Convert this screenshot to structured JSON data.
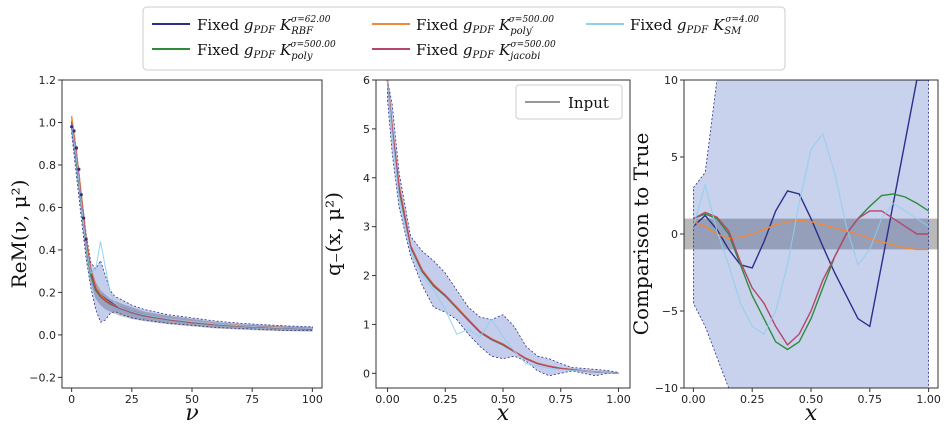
{
  "legend": {
    "entries": [
      {
        "key": "rbf",
        "label": "Fixed g_PDF K_RBF^{σ=62.00}",
        "color": "#2c2f8a"
      },
      {
        "key": "poly",
        "label": "Fixed g_PDF K_poly^{σ=500.00}",
        "color": "#2e8b3a"
      },
      {
        "key": "polyp",
        "label": "Fixed g_PDF K_poly'^{σ=500.00}",
        "color": "#f0883a"
      },
      {
        "key": "jacobi",
        "label": "Fixed g_PDF K_jacobi^{σ=500.00}",
        "color": "#b5476a"
      },
      {
        "key": "sm",
        "label": "Fixed g_PDF K_SM^{σ=4.00}",
        "color": "#8ecfee"
      }
    ]
  },
  "chart_data": [
    {
      "type": "line",
      "id": "rem",
      "ylabel": "ReM(ν, μ²)",
      "xlabel": "ν",
      "xlim": [
        -4,
        104
      ],
      "ylim": [
        -0.25,
        1.2
      ],
      "xticks": [
        0,
        25,
        50,
        75,
        100
      ],
      "xtick_labels": [
        "0",
        "25",
        "50",
        "75",
        "100"
      ],
      "yticks": [
        -0.2,
        0.0,
        0.2,
        0.4,
        0.6,
        0.8,
        1.0,
        1.2
      ],
      "ytick_labels": [
        "−0.2",
        "0.0",
        "0.2",
        "0.4",
        "0.6",
        "0.8",
        "1.0",
        "1.2"
      ],
      "x": [
        0,
        2,
        4,
        6,
        8,
        10,
        12,
        14,
        16,
        18,
        20,
        25,
        30,
        40,
        50,
        60,
        70,
        80,
        90,
        100
      ],
      "truth_band": {
        "lower": [
          0.97,
          0.78,
          0.58,
          0.38,
          0.24,
          0.17,
          0.14,
          0.12,
          0.11,
          0.1,
          0.09,
          0.075,
          0.065,
          0.05,
          0.04,
          0.03,
          0.025,
          0.02,
          0.018,
          0.015
        ],
        "upper": [
          1.01,
          0.86,
          0.66,
          0.46,
          0.32,
          0.25,
          0.21,
          0.19,
          0.17,
          0.16,
          0.15,
          0.13,
          0.11,
          0.09,
          0.075,
          0.06,
          0.05,
          0.045,
          0.04,
          0.035
        ]
      },
      "rbf_band": {
        "lower": [
          0.95,
          0.75,
          0.55,
          0.36,
          0.22,
          0.12,
          0.06,
          0.07,
          0.1,
          0.11,
          0.1,
          0.08,
          0.07,
          0.055,
          0.045,
          0.035,
          0.03,
          0.025,
          0.02,
          0.02
        ],
        "upper": [
          1.02,
          0.88,
          0.67,
          0.48,
          0.34,
          0.31,
          0.35,
          0.28,
          0.21,
          0.18,
          0.17,
          0.14,
          0.12,
          0.095,
          0.08,
          0.065,
          0.055,
          0.048,
          0.042,
          0.038
        ]
      },
      "data_points": {
        "x": [
          0,
          1,
          2,
          3,
          4,
          5,
          6
        ],
        "y": [
          0.98,
          0.96,
          0.88,
          0.78,
          0.66,
          0.55,
          0.45
        ]
      },
      "series": [
        {
          "key": "rbf",
          "values": [
            0.99,
            0.82,
            0.62,
            0.42,
            0.29,
            0.21,
            0.19,
            0.17,
            0.155,
            0.14,
            0.13,
            0.11,
            0.095,
            0.075,
            0.06,
            0.05,
            0.042,
            0.036,
            0.032,
            0.028
          ]
        },
        {
          "key": "poly",
          "values": [
            1.0,
            0.83,
            0.62,
            0.42,
            0.28,
            0.21,
            0.18,
            0.16,
            0.145,
            0.135,
            0.125,
            0.105,
            0.09,
            0.072,
            0.058,
            0.048,
            0.041,
            0.036,
            0.032,
            0.03
          ]
        },
        {
          "key": "polyp",
          "values": [
            1.03,
            0.86,
            0.66,
            0.46,
            0.31,
            0.23,
            0.19,
            0.165,
            0.15,
            0.138,
            0.128,
            0.108,
            0.093,
            0.075,
            0.062,
            0.052,
            0.044,
            0.038,
            0.034,
            0.031
          ]
        },
        {
          "key": "jacobi",
          "values": [
            1.0,
            0.84,
            0.64,
            0.44,
            0.3,
            0.22,
            0.185,
            0.16,
            0.148,
            0.136,
            0.126,
            0.106,
            0.091,
            0.073,
            0.059,
            0.049,
            0.042,
            0.037,
            0.033,
            0.03
          ]
        },
        {
          "key": "sm",
          "values": [
            0.99,
            0.83,
            0.62,
            0.42,
            0.29,
            0.31,
            0.44,
            0.32,
            0.2,
            0.15,
            0.13,
            0.11,
            0.095,
            0.076,
            0.062,
            0.051,
            0.043,
            0.037,
            0.033,
            0.03
          ]
        }
      ]
    },
    {
      "type": "line",
      "id": "qminus",
      "ylabel": "q₋(x, μ²)",
      "xlabel": "x",
      "xlim": [
        -0.05,
        1.05
      ],
      "ylim": [
        -0.3,
        6
      ],
      "xticks": [
        0,
        0.25,
        0.5,
        0.75,
        1.0
      ],
      "xtick_labels": [
        "0.00",
        "0.25",
        "0.50",
        "0.75",
        "1.00"
      ],
      "yticks": [
        0,
        1,
        2,
        3,
        4,
        5,
        6
      ],
      "ytick_labels": [
        "0",
        "1",
        "2",
        "3",
        "4",
        "5",
        "6"
      ],
      "legend": {
        "label": "Input",
        "color": "#777777"
      },
      "x": [
        0.0,
        0.02,
        0.05,
        0.1,
        0.15,
        0.2,
        0.25,
        0.3,
        0.35,
        0.4,
        0.45,
        0.5,
        0.55,
        0.6,
        0.65,
        0.7,
        0.75,
        0.8,
        0.85,
        0.9,
        0.95,
        1.0
      ],
      "rbf_band": {
        "lower": [
          5.6,
          4.5,
          3.4,
          2.4,
          1.8,
          1.35,
          1.25,
          1.1,
          0.8,
          0.55,
          0.35,
          0.3,
          0.35,
          0.25,
          0.05,
          -0.05,
          0.0,
          0.05,
          0.0,
          -0.05,
          0.0,
          0.0
        ],
        "upper": [
          6.0,
          5.5,
          4.1,
          2.8,
          2.5,
          2.3,
          2.05,
          1.7,
          1.35,
          1.15,
          1.1,
          1.2,
          0.95,
          0.55,
          0.35,
          0.3,
          0.2,
          0.12,
          0.1,
          0.08,
          0.06,
          0.02
        ]
      },
      "series": [
        {
          "key": "rbf",
          "values": [
            6.0,
            5.0,
            3.8,
            2.6,
            2.1,
            1.8,
            1.6,
            1.35,
            1.1,
            0.85,
            0.7,
            0.6,
            0.45,
            0.3,
            0.2,
            0.15,
            0.1,
            0.08,
            0.05,
            0.03,
            0.02,
            0.0
          ]
        },
        {
          "key": "poly",
          "values": [
            6.0,
            5.0,
            3.75,
            2.58,
            2.08,
            1.78,
            1.58,
            1.33,
            1.08,
            0.84,
            0.69,
            0.58,
            0.44,
            0.3,
            0.2,
            0.14,
            0.1,
            0.07,
            0.05,
            0.03,
            0.02,
            0.0
          ]
        },
        {
          "key": "polyp",
          "values": [
            6.0,
            5.05,
            3.85,
            2.62,
            2.12,
            1.82,
            1.6,
            1.36,
            1.1,
            0.86,
            0.71,
            0.6,
            0.45,
            0.31,
            0.21,
            0.15,
            0.1,
            0.08,
            0.05,
            0.03,
            0.02,
            0.0
          ]
        },
        {
          "key": "jacobi",
          "values": [
            6.0,
            5.0,
            3.8,
            2.6,
            2.1,
            1.8,
            1.59,
            1.34,
            1.09,
            0.85,
            0.7,
            0.59,
            0.44,
            0.3,
            0.2,
            0.14,
            0.1,
            0.07,
            0.05,
            0.03,
            0.02,
            0.0
          ]
        },
        {
          "key": "sm",
          "values": [
            6.0,
            4.9,
            3.6,
            2.5,
            2.0,
            1.7,
            1.3,
            0.8,
            0.9,
            0.75,
            1.1,
            0.75,
            0.45,
            0.2,
            0.15,
            0.1,
            0.08,
            0.06,
            0.05,
            0.03,
            0.02,
            0.0
          ]
        }
      ]
    },
    {
      "type": "line",
      "id": "comparison",
      "ylabel": "Comparison to True",
      "xlabel": "x",
      "xlim": [
        -0.04,
        1.04
      ],
      "ylim": [
        -10,
        10
      ],
      "xticks": [
        0,
        0.25,
        0.5,
        0.75,
        1.0
      ],
      "xtick_labels": [
        "0.00",
        "0.25",
        "0.50",
        "0.75",
        "1.00"
      ],
      "yticks": [
        -10,
        -5,
        0,
        5,
        10
      ],
      "ytick_labels": [
        "−10",
        "−5",
        "0",
        "5",
        "10"
      ],
      "reference_band": [
        -1,
        1
      ],
      "x": [
        0.0,
        0.05,
        0.1,
        0.15,
        0.2,
        0.25,
        0.3,
        0.35,
        0.4,
        0.45,
        0.5,
        0.55,
        0.6,
        0.65,
        0.7,
        0.75,
        0.8,
        0.85,
        0.9,
        0.95,
        1.0
      ],
      "series": [
        {
          "key": "rbf",
          "values": [
            0.5,
            1.2,
            0.3,
            -1.0,
            -2.0,
            -2.2,
            -0.5,
            1.5,
            2.8,
            2.6,
            1.0,
            -0.8,
            -2.5,
            -4.0,
            -5.5,
            -6.0,
            -2.0,
            2.0,
            6.0,
            10.0,
            10.0
          ]
        },
        {
          "key": "poly",
          "values": [
            1.0,
            1.3,
            1.0,
            0.0,
            -2.0,
            -4.0,
            -5.5,
            -7.0,
            -7.5,
            -7.0,
            -5.5,
            -3.5,
            -1.5,
            0.0,
            1.0,
            1.8,
            2.5,
            2.6,
            2.4,
            2.0,
            1.5
          ]
        },
        {
          "key": "polyp",
          "values": [
            0.8,
            0.5,
            0.0,
            -0.3,
            -0.2,
            0.0,
            0.3,
            0.6,
            0.8,
            0.9,
            0.8,
            0.6,
            0.4,
            0.2,
            0.0,
            -0.3,
            -0.5,
            -0.7,
            -0.9,
            -1.0,
            -1.0
          ]
        },
        {
          "key": "jacobi",
          "values": [
            1.0,
            1.4,
            1.1,
            0.2,
            -1.8,
            -3.5,
            -4.5,
            -6.0,
            -7.2,
            -6.5,
            -5.0,
            -3.0,
            -1.5,
            0.0,
            1.0,
            1.5,
            1.5,
            1.0,
            0.5,
            0.0,
            0.0
          ]
        },
        {
          "key": "sm",
          "values": [
            0.5,
            3.2,
            0.2,
            -2.0,
            -4.5,
            -6.0,
            -6.5,
            -5.0,
            -2.0,
            2.0,
            5.5,
            6.5,
            4.0,
            0.5,
            -2.0,
            -1.0,
            1.0,
            2.0,
            1.5,
            1.0,
            0.5
          ]
        }
      ],
      "rbf_band_lower": [
        -4.5,
        -6.0,
        -8.0,
        -10,
        -10,
        -10,
        -10,
        -10,
        -10,
        -10,
        -10,
        -10,
        -10,
        -10,
        -10,
        -10,
        -10,
        -10,
        -10,
        -10,
        -10
      ],
      "rbf_band_upper": [
        3.0,
        4.0,
        10,
        10,
        10,
        10,
        10,
        10,
        10,
        10,
        10,
        10,
        10,
        10,
        10,
        10,
        10,
        10,
        10,
        10,
        10
      ]
    }
  ]
}
